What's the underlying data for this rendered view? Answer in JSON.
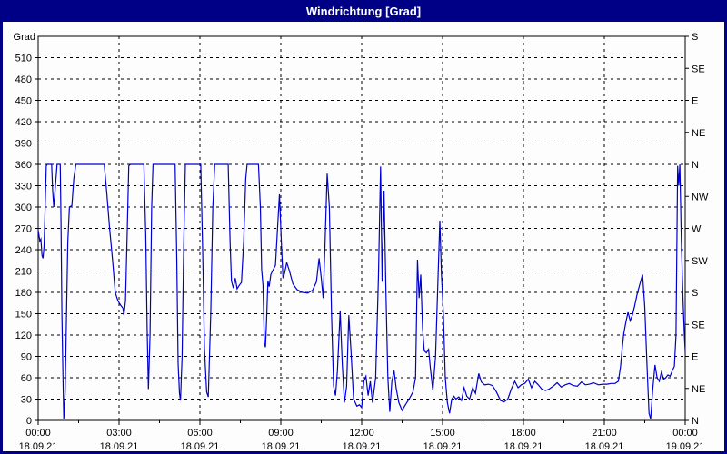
{
  "window": {
    "title": "Windrichtung [Grad]",
    "titlebar_color": "#000087",
    "content_background": "#fdfdfd"
  },
  "chart_data": {
    "type": "line",
    "title": "Windrichtung [Grad]",
    "unit_label": "Grad",
    "grid": true,
    "line_color": "#0000CC",
    "grid_color": "#000000",
    "ylim": [
      0,
      540
    ],
    "xlim_hours": [
      0,
      24
    ],
    "y_left_ticks": [
      0,
      30,
      60,
      90,
      120,
      150,
      180,
      210,
      240,
      270,
      300,
      330,
      360,
      390,
      420,
      450,
      480,
      510
    ],
    "y_right_ticks": [
      {
        "value": 540,
        "label": "S"
      },
      {
        "value": 495,
        "label": "SE"
      },
      {
        "value": 450,
        "label": "E"
      },
      {
        "value": 405,
        "label": "NE"
      },
      {
        "value": 360,
        "label": "N"
      },
      {
        "value": 315,
        "label": "NW"
      },
      {
        "value": 270,
        "label": "W"
      },
      {
        "value": 225,
        "label": "SW"
      },
      {
        "value": 180,
        "label": "S"
      },
      {
        "value": 135,
        "label": "SE"
      },
      {
        "value": 90,
        "label": "E"
      },
      {
        "value": 45,
        "label": "NE"
      },
      {
        "value": 0,
        "label": "N"
      }
    ],
    "x_ticks": [
      {
        "hour": 0,
        "time": "00:00",
        "date": "18.09.21"
      },
      {
        "hour": 3,
        "time": "03:00",
        "date": "18.09.21"
      },
      {
        "hour": 6,
        "time": "06:00",
        "date": "18.09.21"
      },
      {
        "hour": 9,
        "time": "09:00",
        "date": "18.09.21"
      },
      {
        "hour": 12,
        "time": "12:00",
        "date": "18.09.21"
      },
      {
        "hour": 15,
        "time": "15:00",
        "date": "18.09.21"
      },
      {
        "hour": 18,
        "time": "18:00",
        "date": "18.09.21"
      },
      {
        "hour": 21,
        "time": "21:00",
        "date": "18.09.21"
      },
      {
        "hour": 24,
        "time": "00:00",
        "date": "19.09.21"
      }
    ],
    "x_minor_tick_step_hours": 1.5,
    "series": [
      {
        "name": "Windrichtung",
        "points": [
          [
            0.0,
            268
          ],
          [
            0.06,
            252
          ],
          [
            0.1,
            255
          ],
          [
            0.14,
            232
          ],
          [
            0.18,
            228
          ],
          [
            0.22,
            245
          ],
          [
            0.3,
            358
          ],
          [
            0.34,
            360
          ],
          [
            0.5,
            360
          ],
          [
            0.54,
            322
          ],
          [
            0.58,
            300
          ],
          [
            0.64,
            330
          ],
          [
            0.7,
            360
          ],
          [
            0.82,
            360
          ],
          [
            0.85,
            270
          ],
          [
            0.88,
            150
          ],
          [
            0.92,
            60
          ],
          [
            0.95,
            2
          ],
          [
            1.0,
            40
          ],
          [
            1.05,
            150
          ],
          [
            1.1,
            250
          ],
          [
            1.16,
            300
          ],
          [
            1.25,
            302
          ],
          [
            1.32,
            340
          ],
          [
            1.4,
            360
          ],
          [
            2.45,
            360
          ],
          [
            2.55,
            318
          ],
          [
            2.65,
            270
          ],
          [
            2.76,
            225
          ],
          [
            2.86,
            180
          ],
          [
            2.96,
            168
          ],
          [
            3.06,
            162
          ],
          [
            3.14,
            158
          ],
          [
            3.18,
            148
          ],
          [
            3.24,
            168
          ],
          [
            3.3,
            260
          ],
          [
            3.36,
            358
          ],
          [
            3.42,
            360
          ],
          [
            3.92,
            360
          ],
          [
            3.99,
            260
          ],
          [
            4.04,
            130
          ],
          [
            4.09,
            44
          ],
          [
            4.15,
            120
          ],
          [
            4.21,
            300
          ],
          [
            4.26,
            360
          ],
          [
            5.08,
            360
          ],
          [
            5.14,
            230
          ],
          [
            5.19,
            80
          ],
          [
            5.24,
            38
          ],
          [
            5.28,
            28
          ],
          [
            5.34,
            90
          ],
          [
            5.4,
            250
          ],
          [
            5.46,
            360
          ],
          [
            6.03,
            360
          ],
          [
            6.1,
            240
          ],
          [
            6.17,
            100
          ],
          [
            6.25,
            40
          ],
          [
            6.31,
            33
          ],
          [
            6.4,
            150
          ],
          [
            6.48,
            300
          ],
          [
            6.55,
            360
          ],
          [
            7.05,
            360
          ],
          [
            7.12,
            250
          ],
          [
            7.17,
            196
          ],
          [
            7.24,
            186
          ],
          [
            7.31,
            200
          ],
          [
            7.38,
            185
          ],
          [
            7.46,
            190
          ],
          [
            7.54,
            194
          ],
          [
            7.62,
            250
          ],
          [
            7.7,
            340
          ],
          [
            7.75,
            360
          ],
          [
            8.17,
            360
          ],
          [
            8.24,
            300
          ],
          [
            8.29,
            212
          ],
          [
            8.34,
            190
          ],
          [
            8.39,
            108
          ],
          [
            8.43,
            103
          ],
          [
            8.47,
            140
          ],
          [
            8.52,
            196
          ],
          [
            8.57,
            188
          ],
          [
            8.63,
            205
          ],
          [
            8.72,
            212
          ],
          [
            8.8,
            218
          ],
          [
            8.88,
            270
          ],
          [
            8.95,
            318
          ],
          [
            9.02,
            250
          ],
          [
            9.08,
            200
          ],
          [
            9.14,
            207
          ],
          [
            9.22,
            222
          ],
          [
            9.32,
            210
          ],
          [
            9.45,
            192
          ],
          [
            9.6,
            184
          ],
          [
            9.8,
            180
          ],
          [
            10.0,
            179
          ],
          [
            10.18,
            183
          ],
          [
            10.32,
            195
          ],
          [
            10.42,
            228
          ],
          [
            10.5,
            200
          ],
          [
            10.57,
            172
          ],
          [
            10.64,
            250
          ],
          [
            10.72,
            347
          ],
          [
            10.8,
            300
          ],
          [
            10.88,
            150
          ],
          [
            10.96,
            48
          ],
          [
            11.03,
            35
          ],
          [
            11.1,
            70
          ],
          [
            11.2,
            154
          ],
          [
            11.28,
            80
          ],
          [
            11.36,
            25
          ],
          [
            11.44,
            48
          ],
          [
            11.52,
            148
          ],
          [
            11.6,
            100
          ],
          [
            11.7,
            30
          ],
          [
            11.82,
            20
          ],
          [
            11.92,
            22
          ],
          [
            12.0,
            18
          ],
          [
            12.08,
            55
          ],
          [
            12.16,
            62
          ],
          [
            12.24,
            35
          ],
          [
            12.32,
            55
          ],
          [
            12.4,
            25
          ],
          [
            12.52,
            60
          ],
          [
            12.62,
            200
          ],
          [
            12.7,
            357
          ],
          [
            12.76,
            195
          ],
          [
            12.83,
            323
          ],
          [
            12.9,
            180
          ],
          [
            12.97,
            60
          ],
          [
            13.04,
            12
          ],
          [
            13.12,
            55
          ],
          [
            13.2,
            70
          ],
          [
            13.28,
            45
          ],
          [
            13.38,
            25
          ],
          [
            13.5,
            14
          ],
          [
            13.62,
            22
          ],
          [
            13.76,
            30
          ],
          [
            13.9,
            40
          ],
          [
            14.0,
            60
          ],
          [
            14.07,
            226
          ],
          [
            14.13,
            172
          ],
          [
            14.19,
            205
          ],
          [
            14.26,
            130
          ],
          [
            14.32,
            98
          ],
          [
            14.4,
            95
          ],
          [
            14.48,
            100
          ],
          [
            14.55,
            72
          ],
          [
            14.64,
            42
          ],
          [
            14.74,
            90
          ],
          [
            14.83,
            200
          ],
          [
            14.9,
            281
          ],
          [
            14.96,
            205
          ],
          [
            15.03,
            150
          ],
          [
            15.1,
            60
          ],
          [
            15.18,
            25
          ],
          [
            15.26,
            10
          ],
          [
            15.34,
            30
          ],
          [
            15.42,
            34
          ],
          [
            15.5,
            30
          ],
          [
            15.6,
            33
          ],
          [
            15.7,
            28
          ],
          [
            15.8,
            46
          ],
          [
            15.9,
            34
          ],
          [
            16.0,
            30
          ],
          [
            16.12,
            46
          ],
          [
            16.22,
            38
          ],
          [
            16.34,
            66
          ],
          [
            16.44,
            54
          ],
          [
            16.56,
            50
          ],
          [
            16.7,
            51
          ],
          [
            16.85,
            49
          ],
          [
            17.0,
            40
          ],
          [
            17.15,
            28
          ],
          [
            17.28,
            26
          ],
          [
            17.42,
            30
          ],
          [
            17.55,
            44
          ],
          [
            17.68,
            55
          ],
          [
            17.8,
            46
          ],
          [
            17.92,
            50
          ],
          [
            18.05,
            52
          ],
          [
            18.18,
            58
          ],
          [
            18.3,
            46
          ],
          [
            18.42,
            55
          ],
          [
            18.55,
            50
          ],
          [
            18.68,
            44
          ],
          [
            18.82,
            42
          ],
          [
            18.95,
            44
          ],
          [
            19.1,
            48
          ],
          [
            19.25,
            53
          ],
          [
            19.4,
            47
          ],
          [
            19.55,
            50
          ],
          [
            19.7,
            52
          ],
          [
            19.85,
            49
          ],
          [
            20.0,
            48
          ],
          [
            20.15,
            54
          ],
          [
            20.3,
            50
          ],
          [
            20.45,
            51
          ],
          [
            20.6,
            53
          ],
          [
            20.78,
            50
          ],
          [
            20.95,
            51
          ],
          [
            21.1,
            51
          ],
          [
            21.25,
            52
          ],
          [
            21.4,
            52
          ],
          [
            21.52,
            55
          ],
          [
            21.6,
            75
          ],
          [
            21.66,
            100
          ],
          [
            21.72,
            122
          ],
          [
            21.8,
            138
          ],
          [
            21.88,
            152
          ],
          [
            21.96,
            140
          ],
          [
            22.04,
            148
          ],
          [
            22.12,
            160
          ],
          [
            22.22,
            178
          ],
          [
            22.32,
            192
          ],
          [
            22.42,
            205
          ],
          [
            22.5,
            160
          ],
          [
            22.58,
            80
          ],
          [
            22.66,
            10
          ],
          [
            22.72,
            2
          ],
          [
            22.8,
            45
          ],
          [
            22.88,
            78
          ],
          [
            22.96,
            60
          ],
          [
            23.04,
            55
          ],
          [
            23.12,
            68
          ],
          [
            23.2,
            58
          ],
          [
            23.28,
            60
          ],
          [
            23.36,
            64
          ],
          [
            23.44,
            62
          ],
          [
            23.52,
            70
          ],
          [
            23.6,
            76
          ],
          [
            23.66,
            120
          ],
          [
            23.72,
            358
          ],
          [
            23.76,
            330
          ],
          [
            23.8,
            360
          ],
          [
            23.86,
            250
          ],
          [
            23.92,
            170
          ],
          [
            23.97,
            120
          ],
          [
            24.0,
            97
          ]
        ]
      }
    ]
  }
}
